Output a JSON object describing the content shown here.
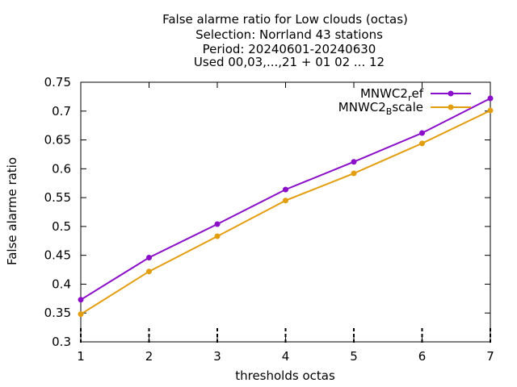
{
  "chart_data": {
    "type": "line",
    "title_lines": [
      "False alarme ratio  for Low clouds (octas)",
      "Selection: Norrland     43 stations",
      "Period: 20240601-20240630",
      "Used 00,03,...,21 + 01 02 ... 12"
    ],
    "xlabel": "thresholds octas",
    "ylabel": "False alarme ratio",
    "x": [
      1,
      2,
      3,
      4,
      5,
      6,
      7
    ],
    "xlim": [
      1,
      7
    ],
    "ylim": [
      0.3,
      0.75
    ],
    "yticks": [
      "0.3",
      "0.35",
      "0.4",
      "0.45",
      "0.5",
      "0.55",
      "0.6",
      "0.65",
      "0.7",
      "0.75"
    ],
    "xticks": [
      "1",
      "2",
      "3",
      "4",
      "5",
      "6",
      "7"
    ],
    "grid": false,
    "legend_position": "top-right",
    "series": [
      {
        "name": "MNWC2_ref",
        "legend_main": "MNWC2",
        "legend_sub": "r",
        "legend_tail": "ef",
        "color": "#8b0fc8",
        "values": [
          0.373,
          0.446,
          0.504,
          0.564,
          0.612,
          0.662,
          0.722
        ]
      },
      {
        "name": "MNWC2_Bscale",
        "legend_main": "MNWC2",
        "legend_sub": "B",
        "legend_tail": "scale",
        "color": "#e39e0f",
        "values": [
          0.348,
          0.422,
          0.483,
          0.545,
          0.592,
          0.644,
          0.701
        ]
      }
    ]
  }
}
